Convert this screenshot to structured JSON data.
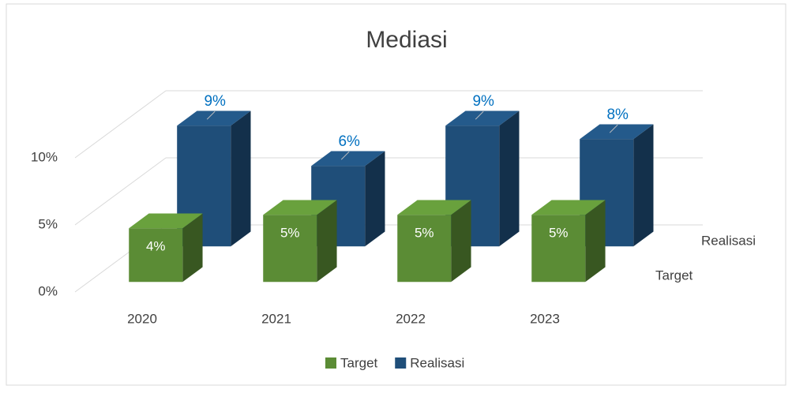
{
  "chart_data": {
    "type": "bar3d",
    "title": "Mediasi",
    "categories": [
      "2020",
      "2021",
      "2022",
      "2023"
    ],
    "series": [
      {
        "name": "Target",
        "color": "#5b8c35",
        "values": [
          4,
          5,
          5,
          5
        ],
        "value_labels": [
          "4%",
          "5%",
          "5%",
          "5%"
        ]
      },
      {
        "name": "Realisasi",
        "color": "#1f4e79",
        "values": [
          9,
          6,
          9,
          8
        ],
        "value_labels": [
          "9%",
          "6%",
          "9%",
          "8%"
        ]
      }
    ],
    "ylim": [
      0,
      10
    ],
    "yticks": [
      {
        "value": 0,
        "label": "0%"
      },
      {
        "value": 5,
        "label": "5%"
      },
      {
        "value": 10,
        "label": "10%"
      }
    ],
    "grid": true,
    "legend": "bottom"
  }
}
